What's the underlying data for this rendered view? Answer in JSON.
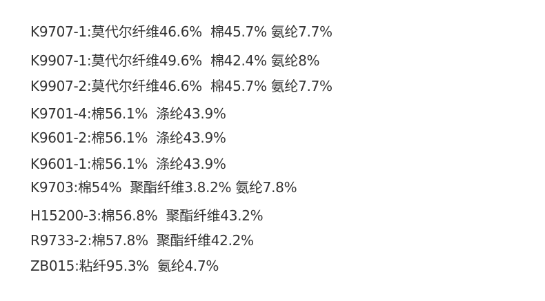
{
  "lines": [
    "K9707-1:莫代尔纤维46.6%  棉45.7% 氨纶7.7%",
    "K9907-1:莫代尔纤维49.6%  棉42.4% 氨纶8%",
    "K9907-2:莫代尔纤维46.6%  棉45.7% 氨纶7.7%",
    "K9701-4:棉56.1%  涤纶43.9%",
    "K9601-2:棉56.1%  涤纶43.9%",
    "K9601-1:棉56.1%  涤纶43.9%",
    "K9703:棉54%  聚酯纤维3.8.2% 氨纶7.8%",
    "H15200-3:棉56.8%  聚酯纤维43.2%",
    "R9733-2:棉57.8%  聚酯纤维42.2%",
    "ZB015:粘纤95.3%  氨纶4.7%"
  ]
}
